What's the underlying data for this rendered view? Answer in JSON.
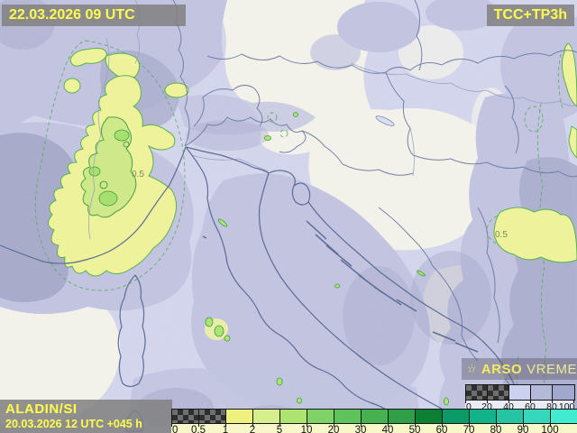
{
  "header": {
    "valid_time": "22.03.2026 09 UTC",
    "product": "TCC+TP3h"
  },
  "footer": {
    "model": "ALADIN/SI",
    "run_info": "20.03.2026 12 UTC +045 h"
  },
  "branding": {
    "agency": "ARSO",
    "service": "VREME",
    "icon": "sun-icon"
  },
  "map": {
    "contour_label": "0.5"
  },
  "colors": {
    "label_text": "#feff4a",
    "label_box_bg": "#808080",
    "map_base": "#f0efe7",
    "cloud_light": "#d5d7ee",
    "cloud_medium": "#c3c5e2",
    "cloud_dark": "#a9abcc",
    "precip_fill": "#eef29b",
    "precip_outline": "#58b24f",
    "coastline": "#5d6d94",
    "border": "#707da3"
  },
  "legends": {
    "cloud": {
      "labels": [
        "0",
        "20",
        "40",
        "60",
        "80",
        "100"
      ],
      "cells": [
        {
          "type": "checker"
        },
        {
          "type": "checker"
        },
        {
          "type": "color",
          "value": "#ccd1ef"
        },
        {
          "type": "color",
          "value": "#b4b8d9"
        },
        {
          "type": "color",
          "value": "#a1a7cd"
        }
      ]
    },
    "precip": {
      "labels": [
        "0",
        "0.5",
        "1",
        "2",
        "5",
        "10",
        "20",
        "30",
        "40",
        "50",
        "60",
        "70",
        "80",
        "90",
        "100"
      ],
      "cells": [
        {
          "type": "checker"
        },
        {
          "type": "checker"
        },
        {
          "type": "color",
          "value": "#eef17d"
        },
        {
          "type": "color",
          "value": "#d6ee8b"
        },
        {
          "type": "color",
          "value": "#ace46f"
        },
        {
          "type": "color",
          "value": "#7fd366"
        },
        {
          "type": "color",
          "value": "#5fc35c"
        },
        {
          "type": "color",
          "value": "#45b151"
        },
        {
          "type": "color",
          "value": "#2fa047"
        },
        {
          "type": "color",
          "value": "#0c7f35"
        },
        {
          "type": "color",
          "value": "#0a9a68"
        },
        {
          "type": "color",
          "value": "#12b28b"
        },
        {
          "type": "color",
          "value": "#25c5a4"
        },
        {
          "type": "color",
          "value": "#35d8bb"
        },
        {
          "type": "color",
          "value": "#40ebd0"
        }
      ]
    }
  }
}
